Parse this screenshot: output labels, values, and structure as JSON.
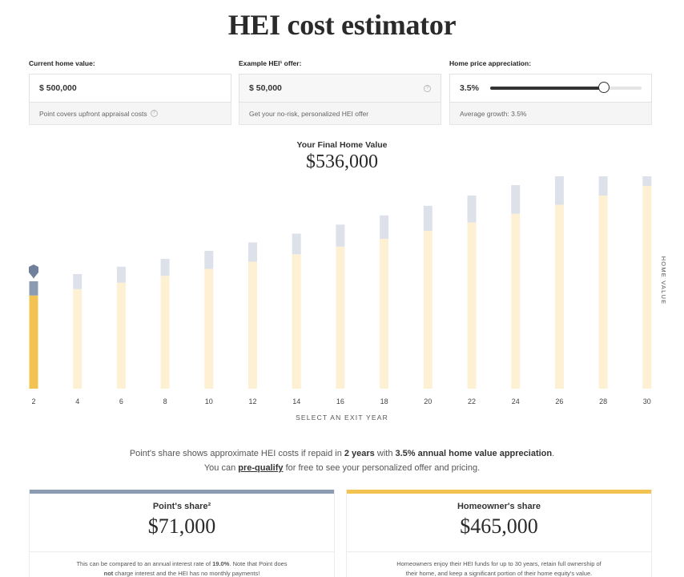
{
  "page": {
    "title": "HEI cost estimator"
  },
  "inputs": {
    "home_value": {
      "label": "Current home value:",
      "value": "$ 500,000",
      "hint": "Point covers upfront appraisal costs"
    },
    "offer": {
      "label": "Example HEI¹ offer:",
      "value": "$ 50,000",
      "hint": "Get your no-risk, personalized HEI offer"
    },
    "appreciation": {
      "label": "Home price appreciation:",
      "value": "3.5%",
      "hint": "Average growth: 3.5%",
      "slider_fraction": 0.75
    }
  },
  "final": {
    "label": "Your Final Home Value",
    "value": "$536,000"
  },
  "chart_data": {
    "type": "bar",
    "categories": [
      2,
      4,
      6,
      8,
      10,
      12,
      14,
      16,
      18,
      20,
      22,
      24,
      26,
      28,
      30
    ],
    "series": [
      {
        "values": [
          465,
          497,
          529,
          563,
          598,
          634,
          671,
          709,
          748,
          788,
          830,
          873,
          918,
          964,
          1012
        ]
      },
      {
        "values": [
          71,
          75,
          80,
          85,
          90,
          96,
          103,
          110,
          117,
          125,
          134,
          143,
          153,
          163,
          174
        ]
      }
    ],
    "ylabel": "HOME VALUE",
    "xlabel": "SELECT AN EXIT YEAR",
    "selected_category": 2,
    "colors": {
      "homeowner": "#fdf0d3",
      "point": "#dde2ea",
      "homeowner_selected": "#f2c350",
      "point_selected": "#8a9bb2",
      "marker": "#6f809a"
    }
  },
  "summary": {
    "pre": "Point's share shows approximate HEI costs if repaid in ",
    "years": "2 years",
    "mid": " with ",
    "rate": "3.5% annual home value appreciation",
    "post1": ". You can ",
    "link": "pre-qualify",
    "post2": " for free to see your personalized offer and pricing."
  },
  "cards": {
    "point": {
      "title": "Point's share²",
      "value": "$71,000",
      "note_pre": "This can be compared to an annual interest rate of ",
      "rate": "19.0%",
      "note_mid": ". Note that Point does ",
      "not": "not",
      "note_post": " charge interest and the HEI has no monthly payments!",
      "color": "#8a9bb2"
    },
    "homeowner": {
      "title": "Homeowner's share",
      "value": "$465,000",
      "note": "Homeowners enjoy their HEI funds for up to 30 years, retain full ownership of their home, and keep a significant portion of their home equity's value.",
      "color": "#f2c350"
    }
  }
}
